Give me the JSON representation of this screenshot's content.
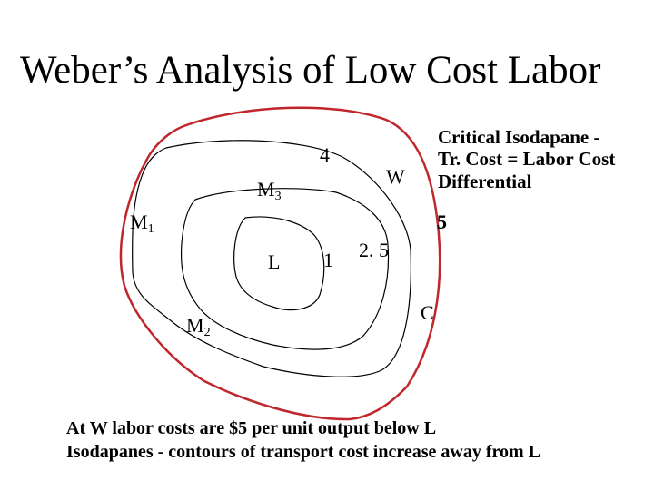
{
  "title": "Weber’s Analysis of Low Cost Labor",
  "labels": {
    "m1": {
      "base": "M",
      "sub": "1"
    },
    "m2": {
      "base": "M",
      "sub": "2"
    },
    "m3": {
      "base": "M",
      "sub": "3"
    },
    "l": "L",
    "w": "W",
    "c": "C",
    "isodapane_1": "1",
    "isodapane_2_5": "2. 5",
    "isodapane_4": "4",
    "isodapane_5": "5"
  },
  "callout": {
    "line1": "Critical Isodapane -",
    "line2": "Tr. Cost = Labor Cost",
    "line3": "Differential"
  },
  "footer": {
    "line1": "At W labor costs are $5 per unit output below L",
    "line2": "Isodapanes - contours of transport cost increase away from L"
  },
  "colors": {
    "critical_isodapane": "#c0272d",
    "isodapane": "#000000"
  }
}
